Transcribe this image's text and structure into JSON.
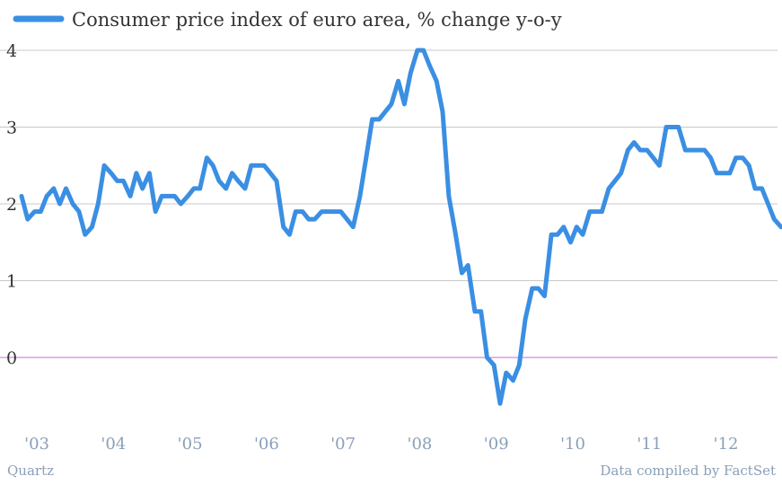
{
  "colors": {
    "line": "#3a8fe3",
    "grid": "#c8c8c8",
    "zero_line": "#c86dd7",
    "text": "#333333",
    "muted": "#8aa0b8"
  },
  "chart_data": {
    "type": "line",
    "title": "",
    "xlabel": "",
    "ylabel": "",
    "ylim": [
      -0.7,
      4
    ],
    "yticks": [
      0,
      1,
      2,
      3,
      4
    ],
    "grid": true,
    "legend": "top-left",
    "xtick_labels": [
      {
        "label": "'03",
        "x": 2003.2
      },
      {
        "label": "'04",
        "x": 2004.2
      },
      {
        "label": "'05",
        "x": 2005.2
      },
      {
        "label": "'06",
        "x": 2006.2
      },
      {
        "label": "'07",
        "x": 2007.2
      },
      {
        "label": "'08",
        "x": 2008.2
      },
      {
        "label": "'09",
        "x": 2009.2
      },
      {
        "label": "'10",
        "x": 2010.2
      },
      {
        "label": "'11",
        "x": 2011.2
      },
      {
        "label": "'12",
        "x": 2012.2
      }
    ],
    "xlim": [
      2003.0,
      2012.85
    ],
    "series": [
      {
        "name": "Consumer price index of euro area, % change y-o-y",
        "points": [
          [
            2003.0,
            2.1
          ],
          [
            2003.08,
            1.8
          ],
          [
            2003.17,
            1.9
          ],
          [
            2003.25,
            1.9
          ],
          [
            2003.33,
            2.1
          ],
          [
            2003.42,
            2.2
          ],
          [
            2003.5,
            2.0
          ],
          [
            2003.58,
            2.2
          ],
          [
            2003.67,
            2.0
          ],
          [
            2003.75,
            1.9
          ],
          [
            2003.83,
            1.6
          ],
          [
            2003.92,
            1.7
          ],
          [
            2004.0,
            2.0
          ],
          [
            2004.08,
            2.5
          ],
          [
            2004.17,
            2.4
          ],
          [
            2004.25,
            2.3
          ],
          [
            2004.33,
            2.3
          ],
          [
            2004.42,
            2.1
          ],
          [
            2004.5,
            2.4
          ],
          [
            2004.58,
            2.2
          ],
          [
            2004.67,
            2.4
          ],
          [
            2004.75,
            1.9
          ],
          [
            2004.83,
            2.1
          ],
          [
            2004.92,
            2.1
          ],
          [
            2005.0,
            2.1
          ],
          [
            2005.08,
            2.0
          ],
          [
            2005.17,
            2.1
          ],
          [
            2005.25,
            2.2
          ],
          [
            2005.33,
            2.2
          ],
          [
            2005.42,
            2.6
          ],
          [
            2005.5,
            2.5
          ],
          [
            2005.58,
            2.3
          ],
          [
            2005.67,
            2.2
          ],
          [
            2005.75,
            2.4
          ],
          [
            2005.83,
            2.3
          ],
          [
            2005.92,
            2.2
          ],
          [
            2006.0,
            2.5
          ],
          [
            2006.08,
            2.5
          ],
          [
            2006.17,
            2.5
          ],
          [
            2006.25,
            2.4
          ],
          [
            2006.33,
            2.3
          ],
          [
            2006.42,
            1.7
          ],
          [
            2006.5,
            1.6
          ],
          [
            2006.58,
            1.9
          ],
          [
            2006.67,
            1.9
          ],
          [
            2006.75,
            1.8
          ],
          [
            2006.83,
            1.8
          ],
          [
            2006.92,
            1.9
          ],
          [
            2007.0,
            1.9
          ],
          [
            2007.08,
            1.9
          ],
          [
            2007.17,
            1.9
          ],
          [
            2007.25,
            1.8
          ],
          [
            2007.33,
            1.7
          ],
          [
            2007.42,
            2.1
          ],
          [
            2007.5,
            2.6
          ],
          [
            2007.58,
            3.1
          ],
          [
            2007.67,
            3.1
          ],
          [
            2007.75,
            3.2
          ],
          [
            2007.83,
            3.3
          ],
          [
            2007.92,
            3.6
          ],
          [
            2008.0,
            3.3
          ],
          [
            2008.08,
            3.7
          ],
          [
            2008.17,
            4.0
          ],
          [
            2008.25,
            4.0
          ],
          [
            2008.33,
            3.8
          ],
          [
            2008.42,
            3.6
          ],
          [
            2008.5,
            3.2
          ],
          [
            2008.58,
            2.1
          ],
          [
            2008.67,
            1.6
          ],
          [
            2008.75,
            1.1
          ],
          [
            2008.83,
            1.2
          ],
          [
            2008.92,
            0.6
          ],
          [
            2009.0,
            0.6
          ],
          [
            2009.08,
            0.0
          ],
          [
            2009.17,
            -0.1
          ],
          [
            2009.25,
            -0.6
          ],
          [
            2009.33,
            -0.2
          ],
          [
            2009.42,
            -0.3
          ],
          [
            2009.5,
            -0.1
          ],
          [
            2009.58,
            0.5
          ],
          [
            2009.67,
            0.9
          ],
          [
            2009.75,
            0.9
          ],
          [
            2009.83,
            0.8
          ],
          [
            2009.92,
            1.6
          ],
          [
            2010.0,
            1.6
          ],
          [
            2010.08,
            1.7
          ],
          [
            2010.17,
            1.5
          ],
          [
            2010.25,
            1.7
          ],
          [
            2010.33,
            1.6
          ],
          [
            2010.42,
            1.9
          ],
          [
            2010.5,
            1.9
          ],
          [
            2010.58,
            1.9
          ],
          [
            2010.67,
            2.2
          ],
          [
            2010.75,
            2.3
          ],
          [
            2010.83,
            2.4
          ],
          [
            2010.92,
            2.7
          ],
          [
            2011.0,
            2.8
          ],
          [
            2011.08,
            2.7
          ],
          [
            2011.17,
            2.7
          ],
          [
            2011.25,
            2.6
          ],
          [
            2011.33,
            2.5
          ],
          [
            2011.42,
            3.0
          ],
          [
            2011.5,
            3.0
          ],
          [
            2011.58,
            3.0
          ],
          [
            2011.67,
            2.7
          ],
          [
            2011.75,
            2.7
          ],
          [
            2011.83,
            2.7
          ],
          [
            2011.92,
            2.7
          ],
          [
            2012.0,
            2.6
          ],
          [
            2012.08,
            2.4
          ],
          [
            2012.17,
            2.4
          ],
          [
            2012.25,
            2.4
          ],
          [
            2012.33,
            2.6
          ],
          [
            2012.42,
            2.6
          ],
          [
            2012.5,
            2.5
          ],
          [
            2012.58,
            2.2
          ],
          [
            2012.67,
            2.2
          ],
          [
            2012.75,
            2.0
          ],
          [
            2012.83,
            1.8
          ],
          [
            2012.92,
            1.7
          ]
        ]
      }
    ]
  },
  "footer": {
    "source_left": "Quartz",
    "source_right": "Data compiled by FactSet"
  }
}
